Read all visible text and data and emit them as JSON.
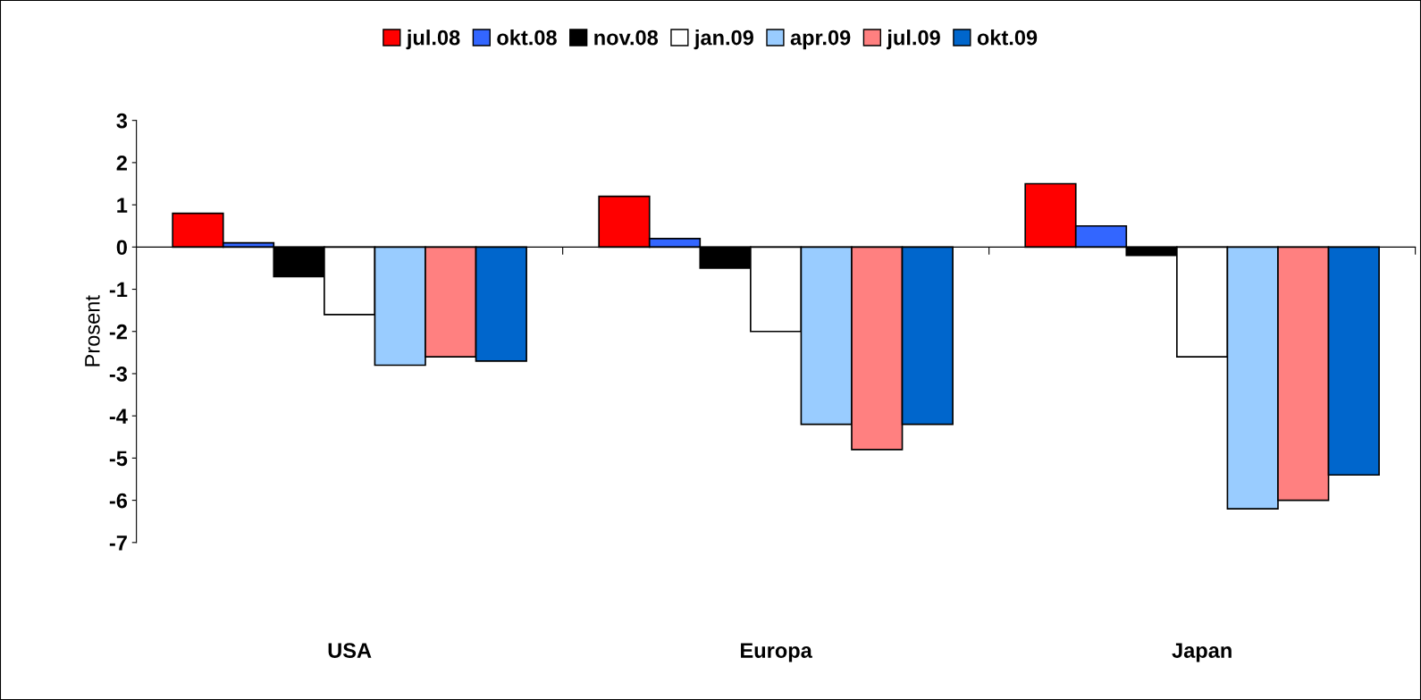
{
  "chart_data": {
    "type": "bar",
    "ylabel": "Prosent",
    "categories": [
      "USA",
      "Europa",
      "Japan"
    ],
    "series": [
      {
        "name": "jul.08",
        "color": "#ff0000",
        "values": [
          0.8,
          1.2,
          1.5
        ]
      },
      {
        "name": "okt.08",
        "color": "#3366ff",
        "values": [
          0.1,
          0.2,
          0.5
        ]
      },
      {
        "name": "nov.08",
        "color": "#000000",
        "values": [
          -0.7,
          -0.5,
          -0.2
        ]
      },
      {
        "name": "jan.09",
        "color": "#ffffff",
        "values": [
          -1.6,
          -2.0,
          -2.6
        ]
      },
      {
        "name": "apr.09",
        "color": "#99ccff",
        "values": [
          -2.8,
          -4.2,
          -6.2
        ]
      },
      {
        "name": "jul.09",
        "color": "#ff8080",
        "values": [
          -2.6,
          -4.8,
          -6.0
        ]
      },
      {
        "name": "okt.09",
        "color": "#0066cc",
        "values": [
          -2.7,
          -4.2,
          -5.4
        ]
      }
    ],
    "ylim": [
      -7,
      3
    ],
    "yticks": [
      {
        "value": 3,
        "label": "3"
      },
      {
        "value": 2,
        "label": "2"
      },
      {
        "value": 1,
        "label": "1"
      },
      {
        "value": 0,
        "label": "0"
      },
      {
        "value": -1,
        "label": "-1"
      },
      {
        "value": -2,
        "label": "-2"
      },
      {
        "value": -3,
        "label": "-3"
      },
      {
        "value": -4,
        "label": "-4"
      },
      {
        "value": -5,
        "label": "-5"
      },
      {
        "value": -6,
        "label": "-6"
      },
      {
        "value": -7,
        "label": "-7"
      }
    ],
    "legend": "top"
  }
}
